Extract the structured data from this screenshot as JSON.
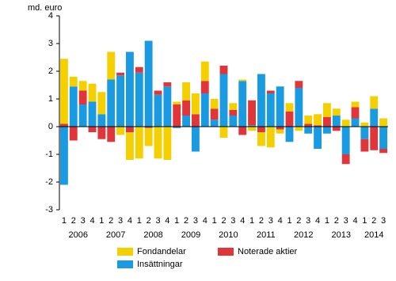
{
  "chart_data": {
    "type": "stacked-bar",
    "y_label": "md. euro",
    "categories": [
      "1",
      "2",
      "3",
      "4",
      "1",
      "2",
      "3",
      "4",
      "1",
      "2",
      "3",
      "4",
      "1",
      "2",
      "3",
      "4",
      "1",
      "2",
      "3",
      "4",
      "1",
      "2",
      "3",
      "4",
      "1",
      "2",
      "3",
      "4",
      "1",
      "2",
      "3",
      "4",
      "1",
      "2",
      "3"
    ],
    "year_labels": [
      "2006",
      "2007",
      "2008",
      "2009",
      "2010",
      "2011",
      "2012",
      "2013",
      "2014"
    ],
    "series": [
      {
        "name": "Insättningar",
        "color": "#1a9ae0",
        "values": [
          -2.1,
          1.45,
          0.8,
          0.9,
          0.45,
          1.7,
          1.85,
          2.7,
          1.95,
          3.1,
          1.15,
          1.45,
          -0.05,
          0.4,
          -0.9,
          1.2,
          0.25,
          1.9,
          0.4,
          1.65,
          0.05,
          1.9,
          1.2,
          1.45,
          -0.55,
          1.4,
          -0.25,
          -0.8,
          -0.25,
          0.4,
          -1.0,
          0.3,
          -0.45,
          0.65,
          -0.8
        ]
      },
      {
        "name": "Noterade aktier",
        "color": "#e0363a",
        "values": [
          0.1,
          -0.5,
          0.5,
          -0.2,
          -0.45,
          -0.55,
          0.1,
          -0.2,
          0.2,
          -0.05,
          0.15,
          0.15,
          0.8,
          0.55,
          0.45,
          0.45,
          0.4,
          0.3,
          0.2,
          -0.3,
          0.9,
          -0.2,
          0.1,
          -0.1,
          0.55,
          0.25,
          0.1,
          0.05,
          0.35,
          -0.15,
          -0.35,
          0.4,
          -0.45,
          -0.85,
          -0.15
        ]
      },
      {
        "name": "Fondandelar",
        "color": "#f5d000",
        "values": [
          2.35,
          0.35,
          0.35,
          0.65,
          0.8,
          1.0,
          -0.3,
          -1.0,
          -1.15,
          -0.65,
          -1.15,
          -1.2,
          0.1,
          0.65,
          0.75,
          0.7,
          0.35,
          -0.4,
          0.25,
          0.05,
          -0.15,
          -0.5,
          -0.75,
          -0.15,
          0.3,
          -0.15,
          0.3,
          0.4,
          0.5,
          0.25,
          0.25,
          0.2,
          0.15,
          0.45,
          0.3
        ]
      }
    ],
    "ylim": [
      -3,
      4
    ],
    "yticks": [
      -3,
      -2,
      -1,
      0,
      1,
      2,
      3,
      4
    ],
    "grid": false
  }
}
